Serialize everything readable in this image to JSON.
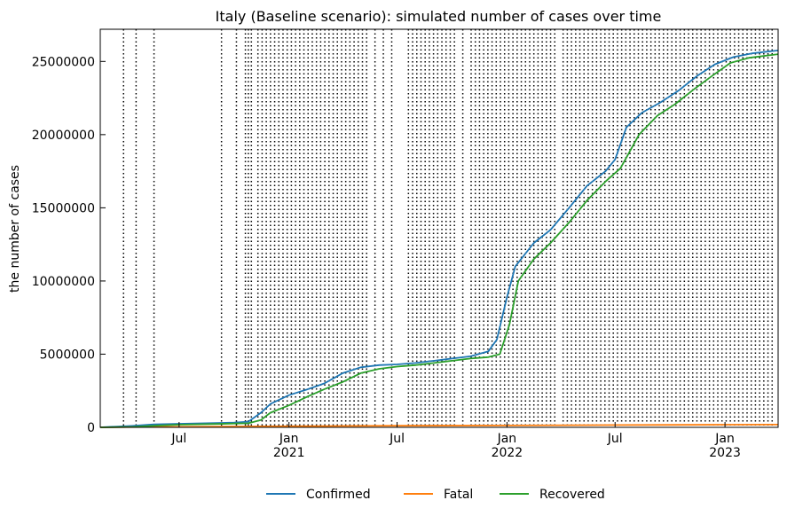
{
  "chart_data": {
    "type": "line",
    "title": "Italy (Baseline scenario): simulated number of cases over time",
    "xlabel": "",
    "ylabel": "the number of cases",
    "x_range": [
      "2020-02-20",
      "2023-03-31"
    ],
    "ylim": [
      0,
      27200000
    ],
    "y_ticks": [
      0,
      5000000,
      10000000,
      15000000,
      20000000,
      25000000
    ],
    "x_ticks": [
      {
        "date": "2020-07-01",
        "label": "Jul",
        "year": ""
      },
      {
        "date": "2021-01-01",
        "label": "Jan",
        "year": "2021"
      },
      {
        "date": "2021-07-01",
        "label": "Jul",
        "year": ""
      },
      {
        "date": "2022-01-01",
        "label": "Jan",
        "year": "2022"
      },
      {
        "date": "2022-07-01",
        "label": "Jul",
        "year": ""
      },
      {
        "date": "2023-01-01",
        "label": "Jan",
        "year": "2023"
      }
    ],
    "grid": false,
    "legend": {
      "position": "bottom-center"
    },
    "phase_change_dates": [
      "2020-03-30",
      "2020-04-20",
      "2020-05-20",
      "2020-09-10",
      "2020-10-05",
      "2020-10-20",
      "2020-10-25",
      "2020-10-30",
      "2020-11-10",
      "2020-11-17",
      "2020-11-24",
      "2020-12-01",
      "2020-12-08",
      "2020-12-15",
      "2020-12-22",
      "2020-12-29",
      "2021-01-05",
      "2021-01-12",
      "2021-01-19",
      "2021-01-26",
      "2021-02-02",
      "2021-02-09",
      "2021-02-16",
      "2021-02-23",
      "2021-03-02",
      "2021-03-09",
      "2021-03-16",
      "2021-03-23",
      "2021-03-30",
      "2021-04-06",
      "2021-04-13",
      "2021-04-20",
      "2021-04-27",
      "2021-05-04",
      "2021-05-11",
      "2021-05-25",
      "2021-06-08",
      "2021-06-22",
      "2021-07-20",
      "2021-07-27",
      "2021-08-03",
      "2021-08-10",
      "2021-08-17",
      "2021-08-24",
      "2021-08-31",
      "2021-09-07",
      "2021-09-14",
      "2021-09-21",
      "2021-09-28",
      "2021-10-05",
      "2021-10-19",
      "2021-11-02",
      "2021-11-09",
      "2021-11-16",
      "2021-11-23",
      "2021-11-30",
      "2021-12-07",
      "2021-12-14",
      "2021-12-21",
      "2021-12-28",
      "2022-01-04",
      "2022-01-11",
      "2022-01-18",
      "2022-01-25",
      "2022-02-01",
      "2022-02-08",
      "2022-02-15",
      "2022-02-22",
      "2022-03-01",
      "2022-03-08",
      "2022-03-15",
      "2022-03-22",
      "2022-04-05",
      "2022-04-12",
      "2022-04-19",
      "2022-04-26",
      "2022-05-03",
      "2022-05-10",
      "2022-05-17",
      "2022-05-24",
      "2022-05-31",
      "2022-06-07",
      "2022-06-14",
      "2022-06-21",
      "2022-06-28",
      "2022-07-05",
      "2022-07-12",
      "2022-07-19",
      "2022-07-26",
      "2022-08-02",
      "2022-08-09",
      "2022-08-16",
      "2022-08-23",
      "2022-08-30",
      "2022-09-06",
      "2022-09-13",
      "2022-09-20",
      "2022-09-27",
      "2022-10-04",
      "2022-10-11",
      "2022-10-18",
      "2022-10-25",
      "2022-11-01",
      "2022-11-08",
      "2022-11-15",
      "2022-11-22",
      "2022-11-29",
      "2022-12-06",
      "2022-12-13",
      "2022-12-20",
      "2022-12-27",
      "2023-01-03",
      "2023-01-10",
      "2023-01-17",
      "2023-01-24",
      "2023-01-31",
      "2023-02-07",
      "2023-02-14",
      "2023-02-21",
      "2023-02-28",
      "2023-03-07",
      "2023-03-14",
      "2023-03-21"
    ],
    "series": [
      {
        "name": "Confirmed",
        "color": "#1f77b4",
        "points": [
          [
            "2020-02-20",
            0
          ],
          [
            "2020-04-15",
            100000
          ],
          [
            "2020-05-20",
            200000
          ],
          [
            "2020-07-01",
            240000
          ],
          [
            "2020-09-01",
            290000
          ],
          [
            "2020-10-01",
            330000
          ],
          [
            "2020-10-25",
            390000
          ],
          [
            "2020-11-15",
            1000000
          ],
          [
            "2020-12-01",
            1600000
          ],
          [
            "2021-01-01",
            2200000
          ],
          [
            "2021-02-01",
            2600000
          ],
          [
            "2021-03-01",
            3000000
          ],
          [
            "2021-04-01",
            3700000
          ],
          [
            "2021-05-01",
            4100000
          ],
          [
            "2021-06-01",
            4250000
          ],
          [
            "2021-07-01",
            4300000
          ],
          [
            "2021-08-01",
            4400000
          ],
          [
            "2021-09-01",
            4550000
          ],
          [
            "2021-10-01",
            4700000
          ],
          [
            "2021-11-01",
            4850000
          ],
          [
            "2021-12-01",
            5200000
          ],
          [
            "2021-12-15",
            6000000
          ],
          [
            "2022-01-01",
            8900000
          ],
          [
            "2022-01-15",
            11000000
          ],
          [
            "2022-02-15",
            12600000
          ],
          [
            "2022-03-15",
            13500000
          ],
          [
            "2022-04-15",
            15000000
          ],
          [
            "2022-05-15",
            16500000
          ],
          [
            "2022-06-15",
            17500000
          ],
          [
            "2022-07-01",
            18300000
          ],
          [
            "2022-07-20",
            20500000
          ],
          [
            "2022-08-15",
            21500000
          ],
          [
            "2022-09-15",
            22200000
          ],
          [
            "2022-10-15",
            23000000
          ],
          [
            "2022-11-15",
            24000000
          ],
          [
            "2022-12-15",
            24800000
          ],
          [
            "2023-01-15",
            25300000
          ],
          [
            "2023-02-15",
            25550000
          ],
          [
            "2023-03-31",
            25750000
          ]
        ]
      },
      {
        "name": "Fatal",
        "color": "#ff7f0e",
        "points": [
          [
            "2020-02-20",
            0
          ],
          [
            "2020-06-01",
            30000
          ],
          [
            "2021-01-01",
            70000
          ],
          [
            "2021-07-01",
            110000
          ],
          [
            "2022-01-01",
            130000
          ],
          [
            "2022-07-01",
            160000
          ],
          [
            "2023-01-01",
            180000
          ],
          [
            "2023-03-31",
            190000
          ]
        ]
      },
      {
        "name": "Recovered",
        "color": "#2ca02c",
        "points": [
          [
            "2020-02-20",
            0
          ],
          [
            "2020-04-15",
            30000
          ],
          [
            "2020-05-20",
            110000
          ],
          [
            "2020-07-01",
            180000
          ],
          [
            "2020-09-01",
            230000
          ],
          [
            "2020-10-01",
            260000
          ],
          [
            "2020-10-25",
            280000
          ],
          [
            "2020-11-15",
            500000
          ],
          [
            "2020-12-01",
            1000000
          ],
          [
            "2021-01-01",
            1500000
          ],
          [
            "2021-02-01",
            2100000
          ],
          [
            "2021-03-01",
            2600000
          ],
          [
            "2021-04-01",
            3100000
          ],
          [
            "2021-05-01",
            3700000
          ],
          [
            "2021-06-01",
            4000000
          ],
          [
            "2021-07-01",
            4150000
          ],
          [
            "2021-08-01",
            4250000
          ],
          [
            "2021-09-01",
            4400000
          ],
          [
            "2021-10-01",
            4550000
          ],
          [
            "2021-11-01",
            4700000
          ],
          [
            "2021-12-01",
            4800000
          ],
          [
            "2021-12-20",
            5000000
          ],
          [
            "2022-01-05",
            7000000
          ],
          [
            "2022-01-20",
            10000000
          ],
          [
            "2022-02-15",
            11500000
          ],
          [
            "2022-03-15",
            12600000
          ],
          [
            "2022-04-15",
            14000000
          ],
          [
            "2022-05-15",
            15500000
          ],
          [
            "2022-06-15",
            16800000
          ],
          [
            "2022-07-10",
            17700000
          ],
          [
            "2022-08-10",
            20000000
          ],
          [
            "2022-09-10",
            21300000
          ],
          [
            "2022-10-10",
            22100000
          ],
          [
            "2022-11-10",
            23100000
          ],
          [
            "2022-12-10",
            24000000
          ],
          [
            "2023-01-10",
            24900000
          ],
          [
            "2023-02-10",
            25250000
          ],
          [
            "2023-03-31",
            25500000
          ]
        ]
      }
    ]
  }
}
